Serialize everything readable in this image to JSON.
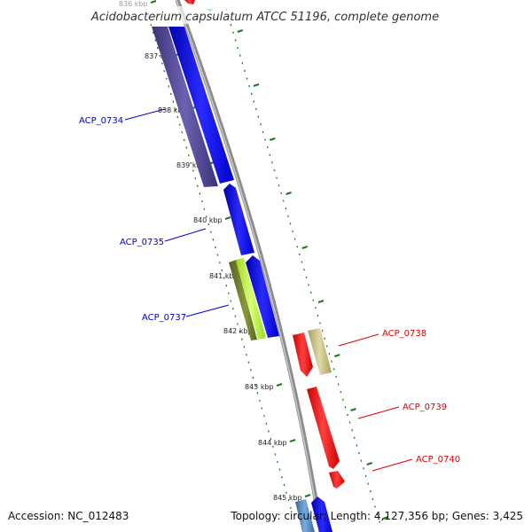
{
  "title": "Acidobacterium capsulatum ATCC 51196, complete genome",
  "footer": {
    "accession": "Accession: NC_012483",
    "summary": "Topology: circular; Length: 4,127,356 bp; Genes: 3,425"
  },
  "colors": {
    "forward_label": "#0000cc",
    "reverse_label": "#dd0000",
    "tick": "#1a7a1a",
    "backbone": "#8c8c8c",
    "gene_blue": "#0000ee",
    "gene_navy": "#4a4090",
    "gene_red": "#ee0000",
    "gene_olive": "#6b7a2a",
    "gene_lime": "#b4f03a",
    "gene_tan": "#c8c08a",
    "gene_steel": "#4f82b8"
  },
  "ticks": [
    {
      "label": "836 kbp"
    },
    {
      "label": "837 kbp"
    },
    {
      "label": "838 kbp"
    },
    {
      "label": "839 kbp"
    },
    {
      "label": "840 kbp"
    },
    {
      "label": "841 kbp"
    },
    {
      "label": "842 kbp"
    },
    {
      "label": "843 kbp"
    },
    {
      "label": "844 kbp"
    },
    {
      "label": "845 kbp"
    }
  ],
  "gene_labels": {
    "acp_0734": "ACP_0734",
    "acp_0735": "ACP_0735",
    "acp_0737": "ACP_0737",
    "acp_0738": "ACP_0738",
    "acp_0739": "ACP_0739",
    "acp_0740": "ACP_0740"
  }
}
